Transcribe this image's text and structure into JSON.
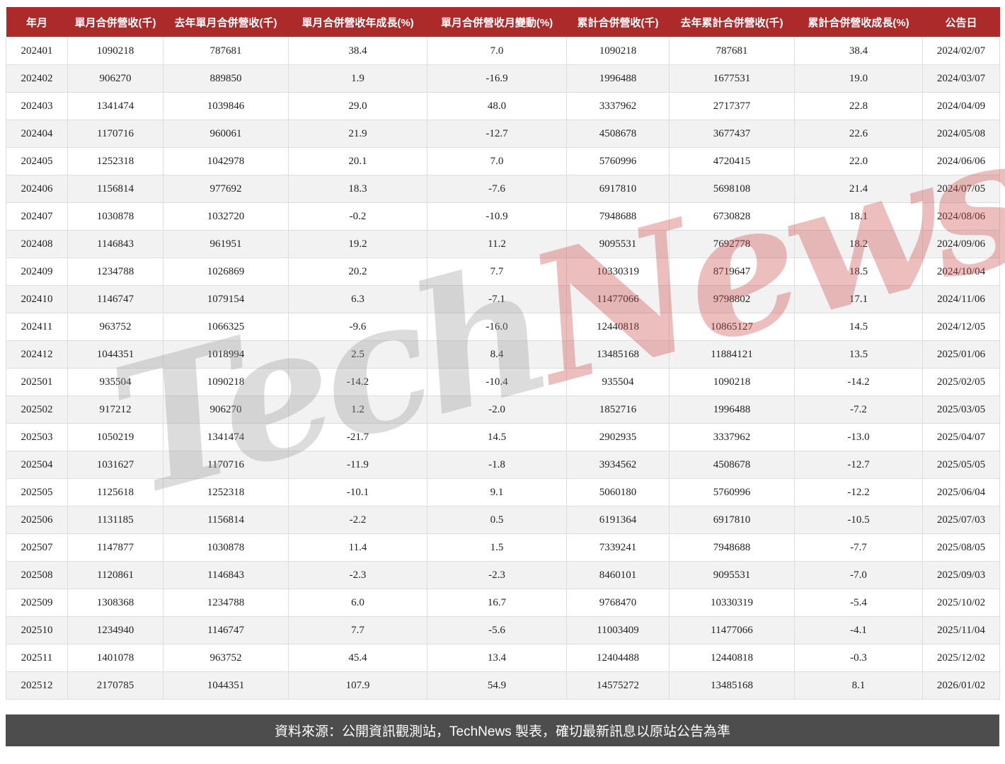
{
  "chart_data": {
    "type": "table",
    "columns": [
      "年月",
      "單月合併營收(千)",
      "去年單月合併營收(千)",
      "單月合併營收年成長(%)",
      "單月合併營收月變動(%)",
      "累計合併營收(千)",
      "去年累計合併營收(千)",
      "累計合併營收成長(%)",
      "公告日"
    ],
    "column_keys": [
      "year-month",
      "monthly-revenue",
      "last-year-monthly-revenue",
      "yoy-growth-pct",
      "mom-change-pct",
      "cumulative-revenue",
      "last-year-cumulative-revenue",
      "cumulative-growth-pct",
      "announce-date"
    ],
    "rows": [
      [
        "202401",
        "1090218",
        "787681",
        "38.4",
        "7.0",
        "1090218",
        "787681",
        "38.4",
        "2024/02/07"
      ],
      [
        "202402",
        "906270",
        "889850",
        "1.9",
        "-16.9",
        "1996488",
        "1677531",
        "19.0",
        "2024/03/07"
      ],
      [
        "202403",
        "1341474",
        "1039846",
        "29.0",
        "48.0",
        "3337962",
        "2717377",
        "22.8",
        "2024/04/09"
      ],
      [
        "202404",
        "1170716",
        "960061",
        "21.9",
        "-12.7",
        "4508678",
        "3677437",
        "22.6",
        "2024/05/08"
      ],
      [
        "202405",
        "1252318",
        "1042978",
        "20.1",
        "7.0",
        "5760996",
        "4720415",
        "22.0",
        "2024/06/06"
      ],
      [
        "202406",
        "1156814",
        "977692",
        "18.3",
        "-7.6",
        "6917810",
        "5698108",
        "21.4",
        "2024/07/05"
      ],
      [
        "202407",
        "1030878",
        "1032720",
        "-0.2",
        "-10.9",
        "7948688",
        "6730828",
        "18.1",
        "2024/08/06"
      ],
      [
        "202408",
        "1146843",
        "961951",
        "19.2",
        "11.2",
        "9095531",
        "7692778",
        "18.2",
        "2024/09/06"
      ],
      [
        "202409",
        "1234788",
        "1026869",
        "20.2",
        "7.7",
        "10330319",
        "8719647",
        "18.5",
        "2024/10/04"
      ],
      [
        "202410",
        "1146747",
        "1079154",
        "6.3",
        "-7.1",
        "11477066",
        "9798802",
        "17.1",
        "2024/11/06"
      ],
      [
        "202411",
        "963752",
        "1066325",
        "-9.6",
        "-16.0",
        "12440818",
        "10865127",
        "14.5",
        "2024/12/05"
      ],
      [
        "202412",
        "1044351",
        "1018994",
        "2.5",
        "8.4",
        "13485168",
        "11884121",
        "13.5",
        "2025/01/06"
      ],
      [
        "202501",
        "935504",
        "1090218",
        "-14.2",
        "-10.4",
        "935504",
        "1090218",
        "-14.2",
        "2025/02/05"
      ],
      [
        "202502",
        "917212",
        "906270",
        "1.2",
        "-2.0",
        "1852716",
        "1996488",
        "-7.2",
        "2025/03/05"
      ],
      [
        "202503",
        "1050219",
        "1341474",
        "-21.7",
        "14.5",
        "2902935",
        "3337962",
        "-13.0",
        "2025/04/07"
      ],
      [
        "202504",
        "1031627",
        "1170716",
        "-11.9",
        "-1.8",
        "3934562",
        "4508678",
        "-12.7",
        "2025/05/05"
      ],
      [
        "202505",
        "1125618",
        "1252318",
        "-10.1",
        "9.1",
        "5060180",
        "5760996",
        "-12.2",
        "2025/06/04"
      ],
      [
        "202506",
        "1131185",
        "1156814",
        "-2.2",
        "0.5",
        "6191364",
        "6917810",
        "-10.5",
        "2025/07/03"
      ],
      [
        "202507",
        "1147877",
        "1030878",
        "11.4",
        "1.5",
        "7339241",
        "7948688",
        "-7.7",
        "2025/08/05"
      ],
      [
        "202508",
        "1120861",
        "1146843",
        "-2.3",
        "-2.3",
        "8460101",
        "9095531",
        "-7.0",
        "2025/09/03"
      ],
      [
        "202509",
        "1308368",
        "1234788",
        "6.0",
        "16.7",
        "9768470",
        "10330319",
        "-5.4",
        "2025/10/02"
      ],
      [
        "202510",
        "1234940",
        "1146747",
        "7.7",
        "-5.6",
        "11003409",
        "11477066",
        "-4.1",
        "2025/11/04"
      ],
      [
        "202511",
        "1401078",
        "963752",
        "45.4",
        "13.4",
        "12404488",
        "12440818",
        "-0.3",
        "2025/12/02"
      ],
      [
        "202512",
        "2170785",
        "1044351",
        "107.9",
        "54.9",
        "14575272",
        "13485168",
        "8.1",
        "2026/01/02"
      ]
    ],
    "layout": {
      "grid": true,
      "header_position": "top",
      "row_striping": true
    }
  },
  "watermark": {
    "tech": "Tech",
    "news": "News"
  },
  "footer": {
    "text": "資料來源：公開資訊觀測站，TechNews 製表，確切最新訊息以原站公告為準"
  },
  "colors": {
    "header_bg": "#ac2a2a",
    "header_text": "#ffffff",
    "row_alt_bg": "#f2f2f2",
    "cell_border": "#dddddd",
    "footer_bg": "#4d4d4d",
    "footer_text": "#ffffff",
    "watermark_gray": "#969696",
    "watermark_red": "#cd4b4b"
  }
}
